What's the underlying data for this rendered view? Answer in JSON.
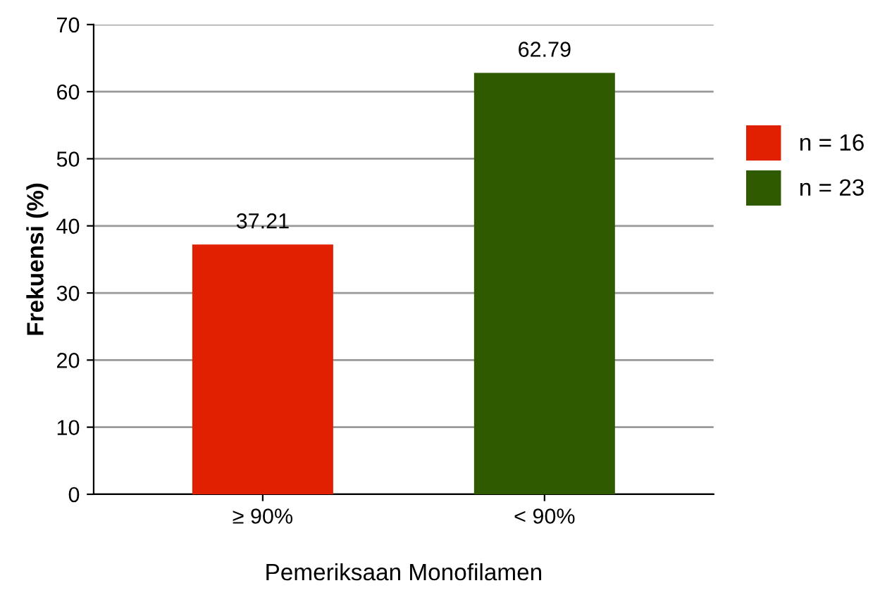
{
  "chart_data": {
    "type": "bar",
    "xlabel": "Pemeriksaan Monofilamen",
    "ylabel": "Frekuensi (%)",
    "categories": [
      "≥ 90%",
      "< 90%"
    ],
    "series": [
      {
        "name": "n = 16",
        "color": "#e02000",
        "values": [
          37.21,
          null
        ]
      },
      {
        "name": "n = 23",
        "color": "#2f5a00",
        "values": [
          null,
          62.79
        ]
      }
    ],
    "stacked": true,
    "ylim": [
      0,
      70
    ],
    "yticks": [
      0,
      10,
      20,
      30,
      40,
      50,
      60,
      70
    ],
    "grid": "y",
    "legend": "right",
    "data_labels": true
  }
}
